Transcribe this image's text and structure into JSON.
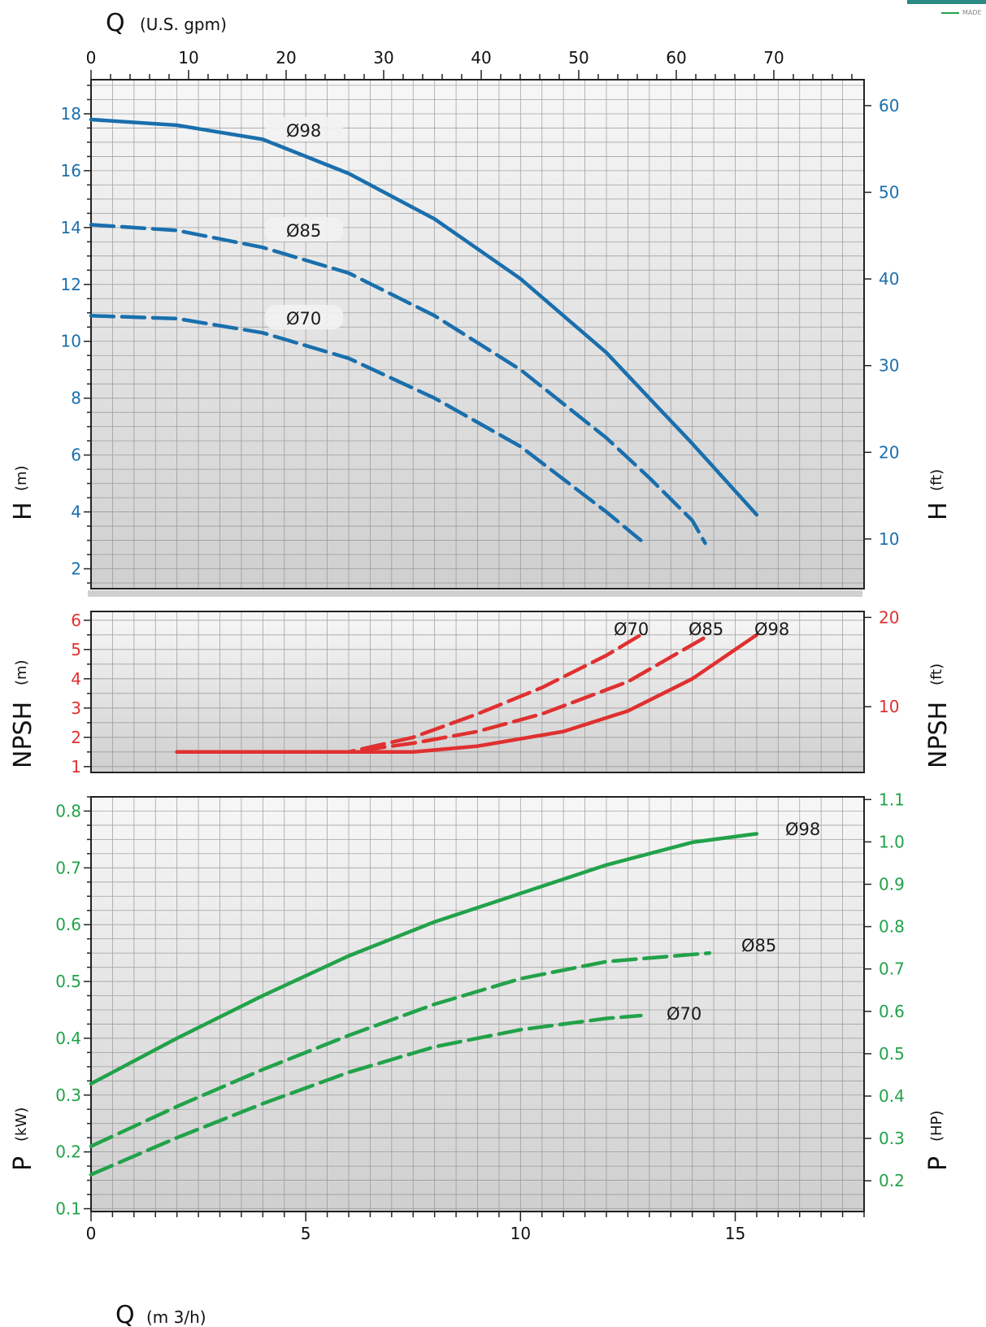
{
  "flow_axis": {
    "top_title": "Q",
    "top_unit": "(U.S. gpm)",
    "top_ticks": [
      "0",
      "10",
      "20",
      "30",
      "40",
      "50",
      "60",
      "70"
    ],
    "bottom_title": "Q",
    "bottom_unit": "(m 3/h)",
    "bottom_ticks": [
      "0",
      "5",
      "10",
      "15"
    ]
  },
  "colors": {
    "head": "#1a6fad",
    "npsh": "#e03030",
    "power": "#22a24a"
  },
  "brand": {
    "logo_text": "MADE"
  },
  "chart_data": [
    {
      "type": "line",
      "id": "head",
      "left_axis_title": "H",
      "left_axis_unit": "(m)",
      "right_axis_title": "H",
      "right_axis_unit": "(ft)",
      "xlim": [
        0,
        18
      ],
      "ylim": [
        1.3,
        19.2
      ],
      "left_ticks": [
        "2",
        "4",
        "6",
        "8",
        "10",
        "12",
        "14",
        "16",
        "18"
      ],
      "right_ticks": [
        "10",
        "20",
        "30",
        "40",
        "50",
        "60"
      ],
      "series": [
        {
          "name": "Ø98",
          "dashed": false,
          "x": [
            0,
            2,
            4,
            6,
            8,
            10,
            12,
            13,
            14,
            15.5
          ],
          "y": [
            17.8,
            17.6,
            17.1,
            15.9,
            14.3,
            12.2,
            9.6,
            8.0,
            6.4,
            3.9
          ]
        },
        {
          "name": "Ø85",
          "dashed": true,
          "x": [
            0,
            2,
            4,
            6,
            8,
            10,
            12,
            13,
            14,
            14.3
          ],
          "y": [
            14.1,
            13.9,
            13.3,
            12.4,
            10.9,
            9.0,
            6.6,
            5.2,
            3.7,
            2.9
          ]
        },
        {
          "name": "Ø70",
          "dashed": true,
          "x": [
            0,
            2,
            4,
            6,
            8,
            10,
            12,
            12.8
          ],
          "y": [
            10.9,
            10.8,
            10.3,
            9.4,
            8.0,
            6.3,
            4.0,
            3.0
          ]
        }
      ]
    },
    {
      "type": "line",
      "id": "npsh",
      "left_axis_title": "NPSH",
      "left_axis_unit": "(m)",
      "right_axis_title": "NPSH",
      "right_axis_unit": "(ft)",
      "xlim": [
        0,
        18
      ],
      "ylim": [
        0.8,
        6.3
      ],
      "left_ticks": [
        "1",
        "2",
        "3",
        "4",
        "5",
        "6"
      ],
      "right_ticks": [
        "10",
        "20"
      ],
      "series": [
        {
          "name": "Ø98",
          "dashed": false,
          "x": [
            2,
            6,
            7.5,
            9,
            11,
            12.5,
            14,
            15.5
          ],
          "y": [
            1.5,
            1.5,
            1.5,
            1.7,
            2.2,
            2.9,
            4.0,
            5.5
          ]
        },
        {
          "name": "Ø85",
          "dashed": true,
          "x": [
            2,
            6,
            7.5,
            9,
            10.5,
            12.5,
            14.4
          ],
          "y": [
            1.5,
            1.5,
            1.8,
            2.2,
            2.8,
            3.9,
            5.5
          ]
        },
        {
          "name": "Ø70",
          "dashed": true,
          "x": [
            2,
            6,
            7.5,
            9,
            10.5,
            12,
            12.8
          ],
          "y": [
            1.5,
            1.5,
            2.0,
            2.8,
            3.7,
            4.8,
            5.5
          ]
        }
      ]
    },
    {
      "type": "line",
      "id": "power",
      "left_axis_title": "P",
      "left_axis_unit": "(kW)",
      "right_axis_title": "P",
      "right_axis_unit": "(HP)",
      "xlim": [
        0,
        18
      ],
      "ylim": [
        0.095,
        0.825
      ],
      "left_ticks": [
        "0.1",
        "0.2",
        "0.3",
        "0.4",
        "0.5",
        "0.6",
        "0.7",
        "0.8"
      ],
      "right_ticks": [
        "0.2",
        "0.3",
        "0.4",
        "0.5",
        "0.6",
        "0.7",
        "0.8",
        "0.9",
        "1.0",
        "1.1"
      ],
      "series": [
        {
          "name": "Ø98",
          "dashed": false,
          "x": [
            0,
            2,
            4,
            6,
            8,
            10,
            12,
            14,
            15.5
          ],
          "y": [
            0.32,
            0.4,
            0.475,
            0.545,
            0.605,
            0.655,
            0.705,
            0.745,
            0.76
          ]
        },
        {
          "name": "Ø85",
          "dashed": true,
          "x": [
            0,
            2,
            4,
            6,
            8,
            10,
            12,
            14.4
          ],
          "y": [
            0.21,
            0.28,
            0.345,
            0.405,
            0.46,
            0.505,
            0.535,
            0.55
          ]
        },
        {
          "name": "Ø70",
          "dashed": true,
          "x": [
            0,
            2,
            4,
            6,
            8,
            10,
            12,
            12.8
          ],
          "y": [
            0.16,
            0.225,
            0.285,
            0.34,
            0.385,
            0.415,
            0.435,
            0.44
          ]
        }
      ]
    }
  ]
}
